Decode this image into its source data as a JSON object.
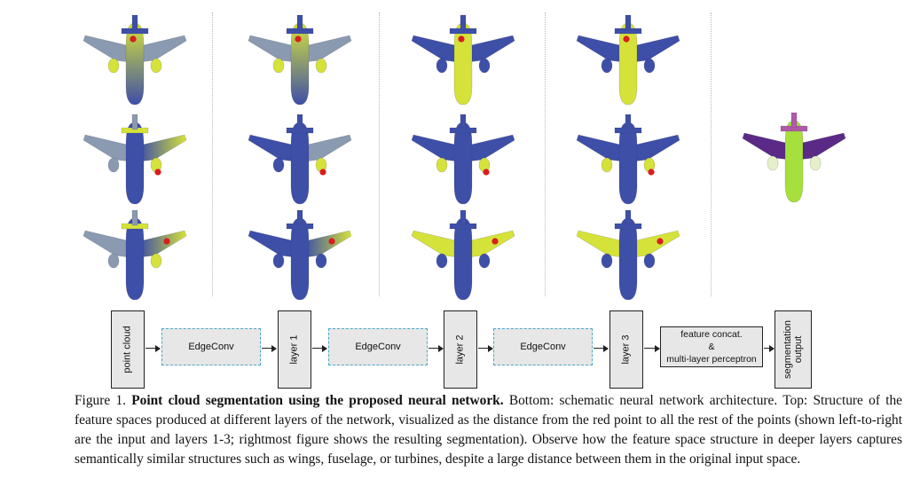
{
  "colors": {
    "low": "#3e4fa8",
    "mid": "#8a9ab0",
    "high": "#d4e23a",
    "query": "#d81e1e",
    "seg_body": "#a6e03c",
    "seg_wing": "#5a2a86",
    "seg_tail": "#b05aa8",
    "seg_engine": "#e6f0c8",
    "edgeconv_border": "#4aa7c8"
  },
  "visualization": {
    "columns_meaning": [
      "input",
      "layer 1",
      "layer 2",
      "layer 3",
      "segmentation"
    ],
    "rows": [
      [
        {
          "highlight": "fuselage-front",
          "query": "fuselage"
        },
        {
          "highlight": "fuselage-front",
          "query": "fuselage"
        },
        {
          "highlight": "fuselage",
          "query": "fuselage"
        },
        {
          "highlight": "fuselage",
          "query": "fuselage"
        }
      ],
      [
        {
          "highlight": "right-wing",
          "query": "right-engine"
        },
        {
          "highlight": "right-engine",
          "query": "right-engine"
        },
        {
          "highlight": "engines",
          "query": "right-engine"
        },
        {
          "highlight": "engines",
          "query": "right-engine"
        }
      ],
      [
        {
          "highlight": "right-wing",
          "query": "right-wing"
        },
        {
          "highlight": "right-wing-tip",
          "query": "right-wing"
        },
        {
          "highlight": "wings",
          "query": "right-wing"
        },
        {
          "highlight": "wings",
          "query": "right-wing"
        }
      ]
    ]
  },
  "architecture": {
    "point_cloud": "point cloud",
    "edgeconv_1": "EdgeConv",
    "layer_1": "layer 1",
    "edgeconv_2": "EdgeConv",
    "layer_2": "layer 2",
    "edgeconv_3": "EdgeConv",
    "layer_3": "layer 3",
    "mlp_line1": "feature concat.",
    "mlp_line2": "&",
    "mlp_line3": "multi-layer perceptron",
    "output_line1": "segmentation",
    "output_line2": "output"
  },
  "caption": {
    "prefix": "Figure 1. ",
    "title": "Point cloud segmentation using the proposed neural network.",
    "body": " Bottom: schematic neural network architecture. Top: Structure of the feature spaces produced at different layers of the network, visualized as the distance from the red point to all the rest of the points (shown left-to-right are the input and layers 1-3; rightmost figure shows the resulting segmentation).  Observe how the feature space structure in deeper layers captures semantically similar structures such as wings, fuselage, or turbines, despite a large distance between them in the original input space."
  }
}
